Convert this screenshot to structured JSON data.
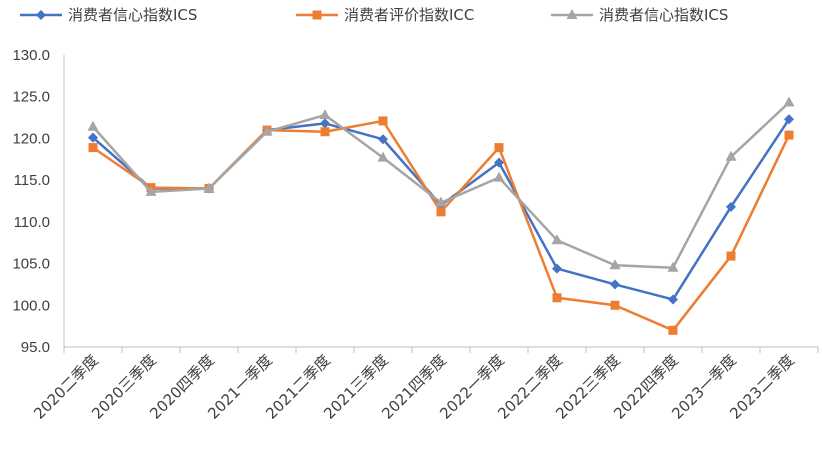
{
  "chart_data": {
    "type": "line",
    "categories": [
      "2020二季度",
      "2020三季度",
      "2020四季度",
      "2021一季度",
      "2021二季度",
      "2021三季度",
      "2021四季度",
      "2022一季度",
      "2022二季度",
      "2022三季度",
      "2022四季度",
      "2023一季度",
      "2023二季度"
    ],
    "series": [
      {
        "name": "消费者信心指数ICS",
        "color": "#4472C4",
        "marker": "diamond",
        "values": [
          120.1,
          114.0,
          114.0,
          121.0,
          121.8,
          119.9,
          112.0,
          117.1,
          104.4,
          102.5,
          100.7,
          111.8,
          122.3
        ]
      },
      {
        "name": "消费者评价指数ICC",
        "color": "#ED7D31",
        "marker": "square",
        "values": [
          118.9,
          114.1,
          114.0,
          121.0,
          120.8,
          122.1,
          111.2,
          118.9,
          100.9,
          100.0,
          97.0,
          105.9,
          120.4
        ]
      },
      {
        "name": "消费者信心指数ICS",
        "color": "#A5A5A5",
        "marker": "triangle",
        "values": [
          121.4,
          113.6,
          114.0,
          120.8,
          122.8,
          117.7,
          112.3,
          115.3,
          107.8,
          104.8,
          104.5,
          117.8,
          124.3
        ]
      }
    ],
    "y_ticks": [
      "130.0",
      "125.0",
      "120.0",
      "115.0",
      "110.0",
      "105.0",
      "100.0",
      "95.0"
    ],
    "ylim": [
      95,
      130
    ],
    "legend_position": "top",
    "grid": false
  }
}
